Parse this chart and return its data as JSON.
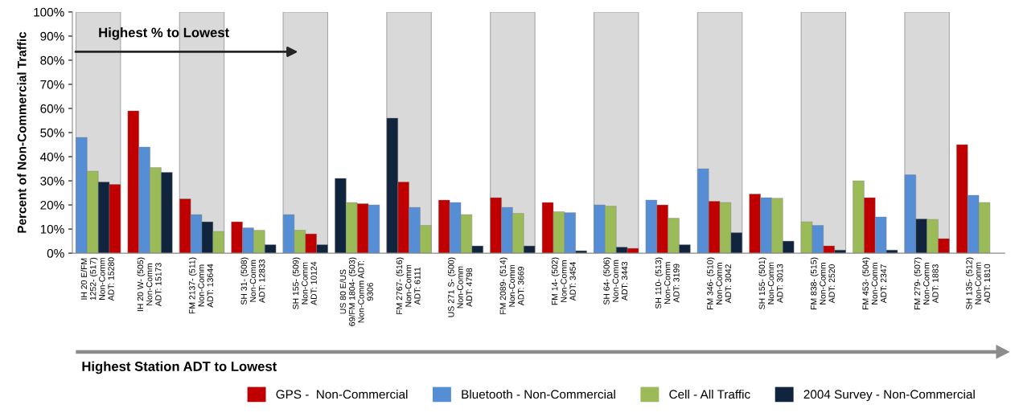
{
  "chart_data": {
    "type": "bar",
    "ylabel": "Percent of Non-Commercial Traffic",
    "categories": [
      "IH 20 E/FM\n1252- (517)\nNon-Comm\nADT: 15280",
      "IH 20 W- (505)\nNon-Comm\nADT: 15173",
      "FM 2137- (511)\nNon-Comm\nADT: 13644",
      "SH 31- (508)\nNon-Comm\nADT: 12833",
      "SH 155- (509)\nNon-Comm\nADT: 10124",
      "US 80 E/US\n69/FM 1804- (503)\nNon-Comm ADT:\n9306",
      "FM 2767- (516)\nNon-Comm\nADT: 6111",
      "US 271 S- (500)\nNon-Comm\nADT: 4798",
      "FM 2089- (514)\nNon-Comm\nADT: 3669",
      "FM 14- (502)\nNon-Comm\nADT: 3454",
      "SH 64- (506)\nNon-Comm\nADT: 3443",
      "SH 110- (513)\nNon-Comm\nADT: 3199",
      "FM 346- (510)\nNon-Comm\nADT: 3042",
      "SH 155- (501)\nNon-Comm\nADT: 3013",
      "FM 838- (515)\nNon-Comm\nADT: 2520",
      "FM 453- (504)\nNon-Comm\nADT: 2347",
      "FM 279- (507)\nNon-Comm\nADT: 1883",
      "SH 135- (512)\nNon-Comm\nADT: 1810"
    ],
    "series": [
      {
        "name": "GPS -  Non-Commercial",
        "color": "#c00000",
        "values": [
          28.5,
          59,
          22.5,
          13,
          8,
          20.5,
          29.5,
          22,
          23,
          21,
          2,
          20,
          21.5,
          24.5,
          3,
          23,
          6,
          45
        ]
      },
      {
        "name": "Bluetooth - Non-Commercial",
        "color": "#558ed5",
        "values": [
          48,
          44,
          16,
          10.5,
          16,
          20,
          19,
          21,
          19,
          16.8,
          20,
          22,
          35,
          23,
          11.5,
          15,
          32.5,
          24
        ]
      },
      {
        "name": "Cell - All Traffic",
        "color": "#9bbb59",
        "values": [
          34,
          35.5,
          9,
          9.5,
          9.5,
          21,
          11.5,
          16,
          16.5,
          17.2,
          19.5,
          14.5,
          21,
          22.8,
          13,
          30,
          14,
          21
        ]
      },
      {
        "name": "2004 Survey - Non-Commercial",
        "color": "#10243e",
        "values": [
          29.5,
          33.5,
          13,
          3.5,
          3.5,
          31,
          56,
          3,
          3,
          1,
          2.5,
          3.5,
          8.5,
          5,
          1.3,
          1.3,
          14.2,
          null
        ]
      }
    ],
    "ylim": [
      0,
      100
    ],
    "yticks": [
      {
        "value": 0,
        "label": "0%"
      },
      {
        "value": 10,
        "label": "10%"
      },
      {
        "value": 20,
        "label": "20%"
      },
      {
        "value": 30,
        "label": "30%"
      },
      {
        "value": 40,
        "label": "40%"
      },
      {
        "value": 50,
        "label": "50%"
      },
      {
        "value": 60,
        "label": "60%"
      },
      {
        "value": 70,
        "label": "70%"
      },
      {
        "value": 80,
        "label": "80%"
      },
      {
        "value": 90,
        "label": "90%"
      },
      {
        "value": 100,
        "label": "100%"
      }
    ],
    "bands": [
      {
        "axis": "x",
        "from": "IH 20 E/FM\n1252- (517)\nNon-Comm\nADT: 15280",
        "to": "IH 20 E/FM\n1252- (517)\nNon-Comm\nADT: 15280",
        "color": "#d9d9d9"
      },
      {
        "axis": "x",
        "from": "FM 2137- (511)\nNon-Comm\nADT: 13644",
        "to": "FM 2137- (511)\nNon-Comm\nADT: 13644",
        "color": "#d9d9d9"
      },
      {
        "axis": "x",
        "from": "SH 155- (509)\nNon-Comm\nADT: 10124",
        "to": "SH 155- (509)\nNon-Comm\nADT: 10124",
        "color": "#d9d9d9"
      },
      {
        "axis": "x",
        "from": "FM 2767- (516)\nNon-Comm\nADT: 6111",
        "to": "FM 2767- (516)\nNon-Comm\nADT: 6111",
        "color": "#d9d9d9"
      },
      {
        "axis": "x",
        "from": "FM 2089- (514)\nNon-Comm\nADT: 3669",
        "to": "FM 2089- (514)\nNon-Comm\nADT: 3669",
        "color": "#d9d9d9"
      },
      {
        "axis": "x",
        "from": "SH 64- (506)\nNon-Comm\nADT: 3443",
        "to": "SH 64- (506)\nNon-Comm\nADT: 3443",
        "color": "#d9d9d9"
      },
      {
        "axis": "x",
        "from": "FM 346- (510)\nNon-Comm\nADT: 3042",
        "to": "FM 346- (510)\nNon-Comm\nADT: 3042",
        "color": "#d9d9d9"
      },
      {
        "axis": "x",
        "from": "FM 838- (515)\nNon-Comm\nADT: 2520",
        "to": "FM 838- (515)\nNon-Comm\nADT: 2520",
        "color": "#d9d9d9"
      },
      {
        "axis": "x",
        "from": "FM 279- (507)\nNon-Comm\nADT: 1883",
        "to": "FM 279- (507)\nNon-Comm\nADT: 1883",
        "color": "#d9d9d9"
      }
    ],
    "annotations": [
      "Highest % to Lowest",
      "Highest Station ADT to Lowest"
    ],
    "legend": "bottom",
    "grid": false
  }
}
